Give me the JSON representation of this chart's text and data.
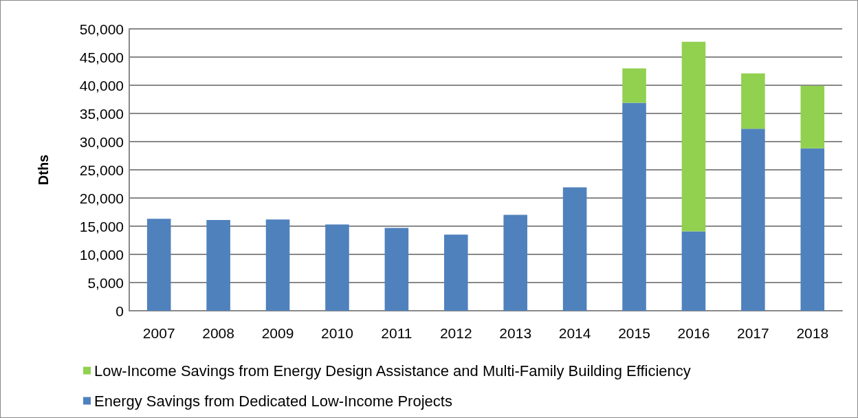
{
  "chart_data": {
    "type": "bar",
    "stacked": true,
    "ylabel": "Dths",
    "categories": [
      "2007",
      "2008",
      "2009",
      "2010",
      "2011",
      "2012",
      "2013",
      "2014",
      "2015",
      "2016",
      "2017",
      "2018"
    ],
    "series": [
      {
        "name": "Energy Savings from Dedicated Low-Income Projects",
        "color": "#4f81bd",
        "values": [
          16300,
          16100,
          16200,
          15300,
          14700,
          13500,
          17000,
          21900,
          36900,
          14100,
          32300,
          28800
        ]
      },
      {
        "name": "Low-Income Savings from Energy Design Assistance and Multi-Family Building Efficiency",
        "color": "#92d050",
        "values": [
          null,
          null,
          null,
          null,
          null,
          null,
          null,
          null,
          6100,
          33600,
          9800,
          11100
        ]
      }
    ],
    "ylim": [
      0,
      50000
    ],
    "yticks": [
      0,
      {
        "value": 5000,
        "label": "5,000"
      },
      {
        "value": 10000,
        "label": "10,000"
      },
      {
        "value": 15000,
        "label": "15,000"
      },
      {
        "value": 20000,
        "label": "20,000"
      },
      {
        "value": 25000,
        "label": "25,000"
      },
      {
        "value": 30000,
        "label": "30,000"
      },
      {
        "value": 35000,
        "label": "35,000"
      },
      {
        "value": 40000,
        "label": "40,000"
      },
      {
        "value": 45000,
        "label": "45,000"
      },
      {
        "value": 50000,
        "label": "50,000"
      }
    ],
    "grid": "y",
    "legend": "bottom"
  }
}
